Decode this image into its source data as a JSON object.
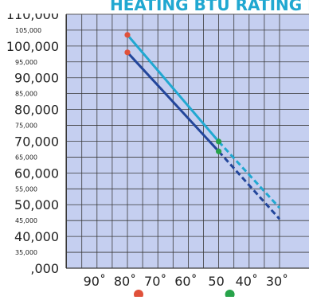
{
  "chart_data": {
    "type": "line",
    "title": "HEATING BTU RATING PER HOUR",
    "xlabel": "",
    "ylabel": "",
    "x": [
      90,
      80,
      70,
      60,
      50,
      40,
      30
    ],
    "x_tick_labels": [
      "90˚",
      "80˚",
      "70˚",
      "60˚",
      "50",
      "40˚",
      "30˚"
    ],
    "x_range_shown": [
      30,
      100
    ],
    "x_axis_reversed": true,
    "ylim": [
      30000,
      110000
    ],
    "y_major_ticks": [
      {
        "value": 110000,
        "label": "110,000"
      },
      {
        "value": 100000,
        "label": "100,000"
      },
      {
        "value": 90000,
        "label": "90,000"
      },
      {
        "value": 80000,
        "label": "80,000"
      },
      {
        "value": 70000,
        "label": "70,000"
      },
      {
        "value": 60000,
        "label": "60,000"
      },
      {
        "value": 50000,
        "label": "50,000"
      },
      {
        "value": 40000,
        "label": "40,000"
      },
      {
        "value": 30000,
        "label": ",000"
      }
    ],
    "y_minor_ticks": [
      {
        "value": 105000,
        "label": "105,000"
      },
      {
        "value": 95000,
        "label": "95,000"
      },
      {
        "value": 85000,
        "label": "85,000"
      },
      {
        "value": 75000,
        "label": "75,000"
      },
      {
        "value": 65000,
        "label": "65,000"
      },
      {
        "value": 55000,
        "label": "55,000"
      },
      {
        "value": 45000,
        "label": "45,000"
      },
      {
        "value": 35000,
        "label": "35,000"
      }
    ],
    "series": [
      {
        "color": "#21a8d1",
        "solid": [
          {
            "x": 80,
            "y": 103500
          },
          {
            "x": 50,
            "y": 69900
          }
        ],
        "dashed": [
          {
            "x": 50,
            "y": 69900
          },
          {
            "x": 30,
            "y": 49000
          }
        ]
      },
      {
        "color": "#23469b",
        "solid": [
          {
            "x": 80,
            "y": 98000
          },
          {
            "x": 50,
            "y": 66800
          }
        ],
        "dashed": [
          {
            "x": 50,
            "y": 66800
          },
          {
            "x": 30,
            "y": 45500
          }
        ]
      }
    ],
    "markers": [
      {
        "x": 80,
        "y": 103500,
        "color": "#e0513a"
      },
      {
        "x": 80,
        "y": 98000,
        "color": "#e0513a"
      },
      {
        "x": 50,
        "y": 69900,
        "color": "#27a34a"
      },
      {
        "x": 50,
        "y": 66800,
        "color": "#27a34a"
      }
    ],
    "axis_indicators": [
      {
        "x": 80,
        "color": "#e0513a"
      },
      {
        "x": 50,
        "color": "#27a34a"
      }
    ],
    "grid": true,
    "colors": {
      "plot_background": "#c5cff0",
      "grid": "#3a3a3a",
      "title": "#21a8d1",
      "axis_text": "#222222"
    }
  }
}
